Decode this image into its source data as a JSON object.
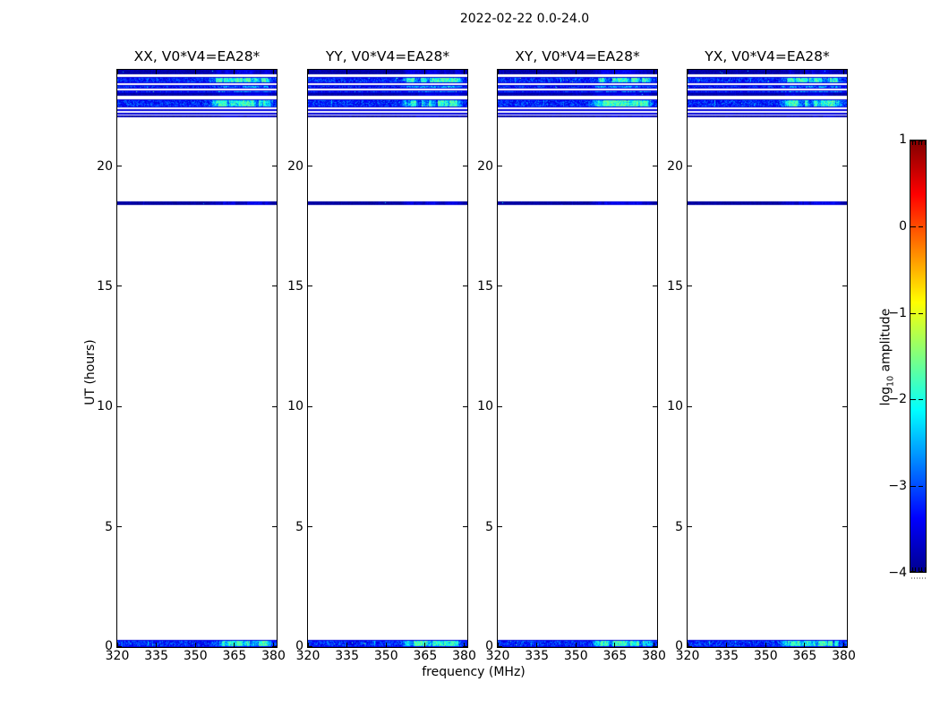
{
  "figure": {
    "suptitle": "2022-02-22 0.0-24.0",
    "xlabel": "frequency (MHz)",
    "ylabel": "UT (hours)",
    "background_color": "#ffffff",
    "text_color": "#000000"
  },
  "chart_data": {
    "type": "heatmap",
    "title": "2022-02-22 0.0-24.0",
    "xlabel": "frequency (MHz)",
    "ylabel": "UT (hours)",
    "xlim": [
      320,
      381.2
    ],
    "ylim": [
      0,
      24
    ],
    "xticks": [
      320,
      335,
      350,
      365,
      380
    ],
    "xtick_labels": [
      "320",
      "335",
      "350",
      "365",
      "380"
    ],
    "yticks": [
      0,
      5,
      10,
      15,
      20
    ],
    "ytick_labels": [
      "0",
      "5",
      "10",
      "15",
      "20"
    ],
    "grid": false,
    "panels": [
      {
        "id": "xx",
        "title": "XX, V0*V4=EA28*"
      },
      {
        "id": "yy",
        "title": "YY, V0*V4=EA28*"
      },
      {
        "id": "xy",
        "title": "XY, V0*V4=EA28*"
      },
      {
        "id": "yx",
        "title": "YX, V0*V4=EA28*"
      }
    ],
    "colorbar": {
      "label": "log10 amplitude",
      "label_parts": {
        "prefix": "log",
        "sub": "10",
        "suffix": " amplitude"
      },
      "vmin": -4,
      "vmax": 1,
      "ticks": [
        1,
        0,
        -1,
        -2,
        -3,
        -4
      ],
      "tick_labels": [
        "1",
        "0",
        "−1",
        "−2",
        "−3",
        "−4"
      ],
      "colormap": "jet",
      "colormap_stops": [
        {
          "pos": 0.0,
          "color": "#00008f"
        },
        {
          "pos": 0.125,
          "color": "#0000ff"
        },
        {
          "pos": 0.375,
          "color": "#00ffff"
        },
        {
          "pos": 0.625,
          "color": "#ffff00"
        },
        {
          "pos": 0.875,
          "color": "#ff0000"
        },
        {
          "pos": 1.0,
          "color": "#800000"
        }
      ]
    },
    "observations": {
      "description": "Dynamic spectra (time vs frequency) for four polarization products of baseline V0*V4=EA28. Data present only near 22.0-24.0 h (striped scan blocks), a thin dark scan line near 18.4-18.5 h, and a short scan at 0.0-0.3 h. Brighter RFI patches occupy roughly 356-379 MHz.",
      "rfi_band_mhz": [
        356,
        379
      ],
      "scan_time_ranges_hours": [
        [
          0.0,
          0.3
        ],
        [
          18.38,
          18.52
        ],
        [
          22.0,
          24.0
        ]
      ],
      "scan_blocks": [
        {
          "t_start": 23.82,
          "t_end": 24.0,
          "style": "dark"
        },
        {
          "t_start": 23.46,
          "t_end": 23.72,
          "style": "bright"
        },
        {
          "t_start": 23.22,
          "t_end": 23.38,
          "style": "noise"
        },
        {
          "t_start": 23.05,
          "t_end": 23.15,
          "style": "noise"
        },
        {
          "t_start": 22.92,
          "t_end": 23.03,
          "style": "dark"
        },
        {
          "t_start": 22.43,
          "t_end": 22.77,
          "style": "bright"
        },
        {
          "t_start": 22.27,
          "t_end": 22.36,
          "style": "noise"
        },
        {
          "t_start": 22.13,
          "t_end": 22.21,
          "style": "noise"
        },
        {
          "t_start": 22.02,
          "t_end": 22.11,
          "style": "dark"
        },
        {
          "t_start": 18.38,
          "t_end": 18.52,
          "style": "dark_line"
        },
        {
          "t_start": 0.0,
          "t_end": 0.3,
          "style": "bright"
        }
      ]
    }
  }
}
